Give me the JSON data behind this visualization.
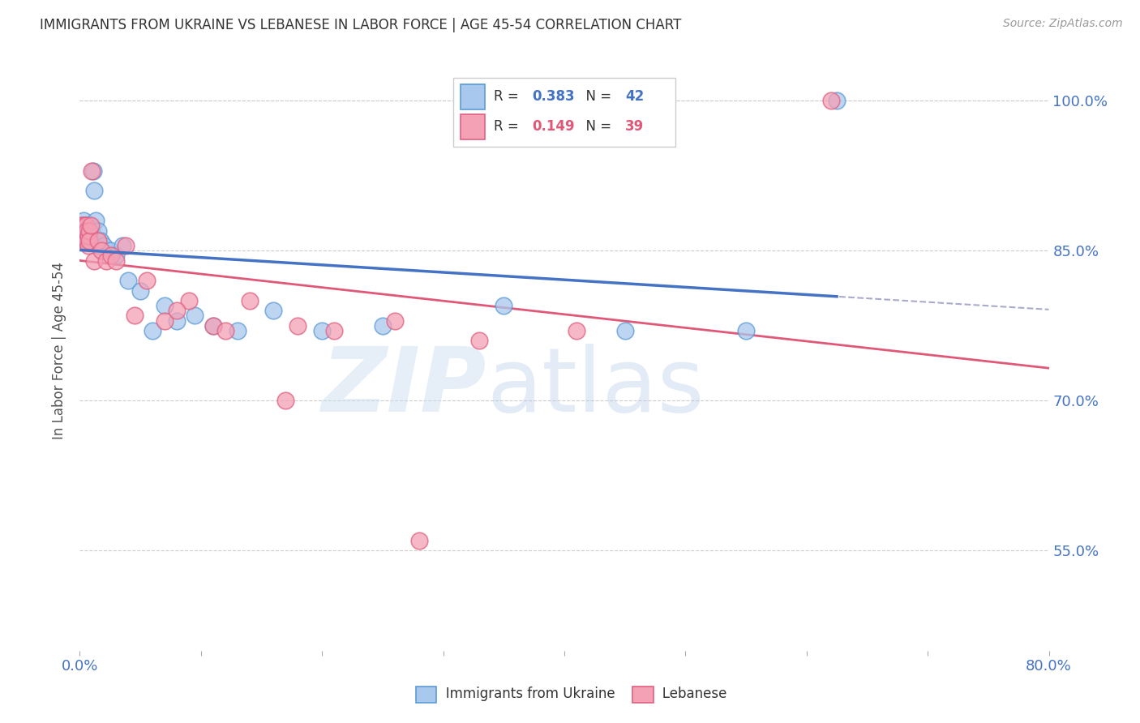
{
  "title": "IMMIGRANTS FROM UKRAINE VS LEBANESE IN LABOR FORCE | AGE 45-54 CORRELATION CHART",
  "source": "Source: ZipAtlas.com",
  "ylabel": "In Labor Force | Age 45-54",
  "xlim": [
    0.0,
    0.8
  ],
  "ylim": [
    0.45,
    1.05
  ],
  "yticks": [
    0.55,
    0.7,
    0.85,
    1.0
  ],
  "ytick_labels": [
    "55.0%",
    "70.0%",
    "85.0%",
    "100.0%"
  ],
  "xtick_positions": [
    0.0,
    0.1,
    0.2,
    0.3,
    0.4,
    0.5,
    0.6,
    0.7,
    0.8
  ],
  "xtick_labels": [
    "0.0%",
    "",
    "",
    "",
    "",
    "",
    "",
    "",
    "80.0%"
  ],
  "blue_fill": "#A8C8EE",
  "blue_edge": "#5B9BD5",
  "pink_fill": "#F4A0B5",
  "pink_edge": "#E06080",
  "blue_line": "#4472C4",
  "pink_line": "#E05878",
  "dashed_line": "#AAAACC",
  "ukraine_R": 0.383,
  "ukraine_N": 42,
  "lebanon_R": 0.149,
  "lebanon_N": 39,
  "ukraine_x": [
    0.001,
    0.002,
    0.003,
    0.003,
    0.004,
    0.004,
    0.005,
    0.005,
    0.006,
    0.006,
    0.007,
    0.007,
    0.008,
    0.008,
    0.009,
    0.009,
    0.01,
    0.01,
    0.011,
    0.012,
    0.013,
    0.015,
    0.017,
    0.02,
    0.025,
    0.03,
    0.035,
    0.04,
    0.05,
    0.06,
    0.07,
    0.08,
    0.095,
    0.11,
    0.13,
    0.16,
    0.2,
    0.25,
    0.35,
    0.45,
    0.55,
    0.625
  ],
  "ukraine_y": [
    0.87,
    0.875,
    0.88,
    0.87,
    0.875,
    0.865,
    0.86,
    0.87,
    0.875,
    0.865,
    0.87,
    0.86,
    0.875,
    0.865,
    0.87,
    0.86,
    0.87,
    0.86,
    0.93,
    0.91,
    0.88,
    0.87,
    0.86,
    0.855,
    0.85,
    0.845,
    0.855,
    0.82,
    0.81,
    0.77,
    0.795,
    0.78,
    0.785,
    0.775,
    0.77,
    0.79,
    0.77,
    0.775,
    0.795,
    0.77,
    0.77,
    1.0
  ],
  "lebanon_x": [
    0.001,
    0.002,
    0.003,
    0.003,
    0.004,
    0.004,
    0.005,
    0.005,
    0.006,
    0.006,
    0.007,
    0.007,
    0.008,
    0.008,
    0.009,
    0.01,
    0.012,
    0.015,
    0.018,
    0.022,
    0.026,
    0.03,
    0.038,
    0.045,
    0.055,
    0.07,
    0.09,
    0.11,
    0.14,
    0.17,
    0.21,
    0.26,
    0.33,
    0.41,
    0.62,
    0.08,
    0.12,
    0.18,
    0.28
  ],
  "lebanon_y": [
    0.875,
    0.87,
    0.865,
    0.875,
    0.87,
    0.86,
    0.865,
    0.875,
    0.87,
    0.86,
    0.855,
    0.865,
    0.87,
    0.86,
    0.875,
    0.93,
    0.84,
    0.86,
    0.85,
    0.84,
    0.845,
    0.84,
    0.855,
    0.785,
    0.82,
    0.78,
    0.8,
    0.775,
    0.8,
    0.7,
    0.77,
    0.78,
    0.76,
    0.77,
    1.0,
    0.79,
    0.77,
    0.775,
    0.56
  ],
  "background_color": "#FFFFFF",
  "grid_color": "#CCCCCC",
  "tick_label_color": "#4472C4",
  "title_color": "#333333",
  "ylabel_color": "#555555"
}
